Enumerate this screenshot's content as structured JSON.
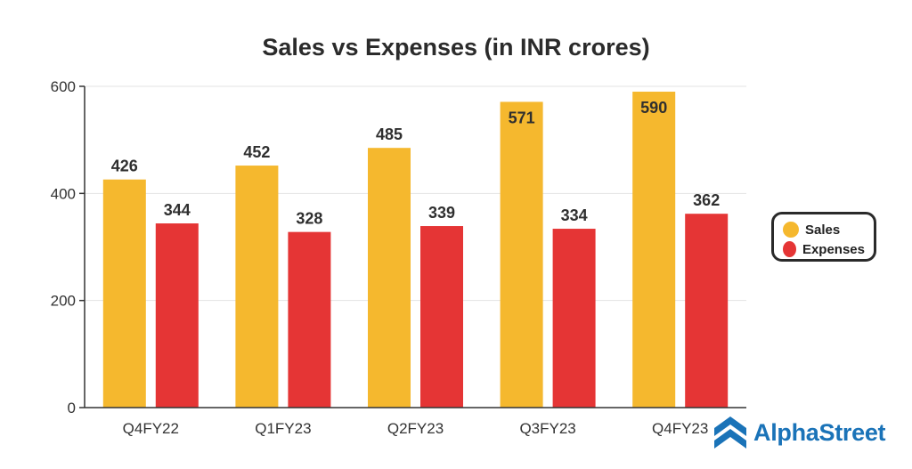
{
  "chart_data": {
    "type": "bar",
    "title": "Sales vs Expenses (in INR crores)",
    "categories": [
      "Q4FY22",
      "Q1FY23",
      "Q2FY23",
      "Q3FY23",
      "Q4FY23"
    ],
    "series": [
      {
        "name": "Sales",
        "color": "#F5B82E",
        "values": [
          426,
          452,
          485,
          571,
          590
        ]
      },
      {
        "name": "Expenses",
        "color": "#E53535",
        "values": [
          344,
          328,
          339,
          334,
          362
        ]
      }
    ],
    "ylim": [
      0,
      600
    ],
    "yticks": [
      0,
      200,
      400,
      600
    ],
    "xlabel": "",
    "ylabel": "",
    "grid": true,
    "legend_position": "right"
  },
  "legend": {
    "items": [
      {
        "label": "Sales",
        "color": "#F5B82E"
      },
      {
        "label": "Expenses",
        "color": "#E53535"
      }
    ]
  },
  "brand": {
    "name": "AlphaStreet",
    "color": "#1a73b8",
    "icon": "alphastreet-logo-icon"
  }
}
